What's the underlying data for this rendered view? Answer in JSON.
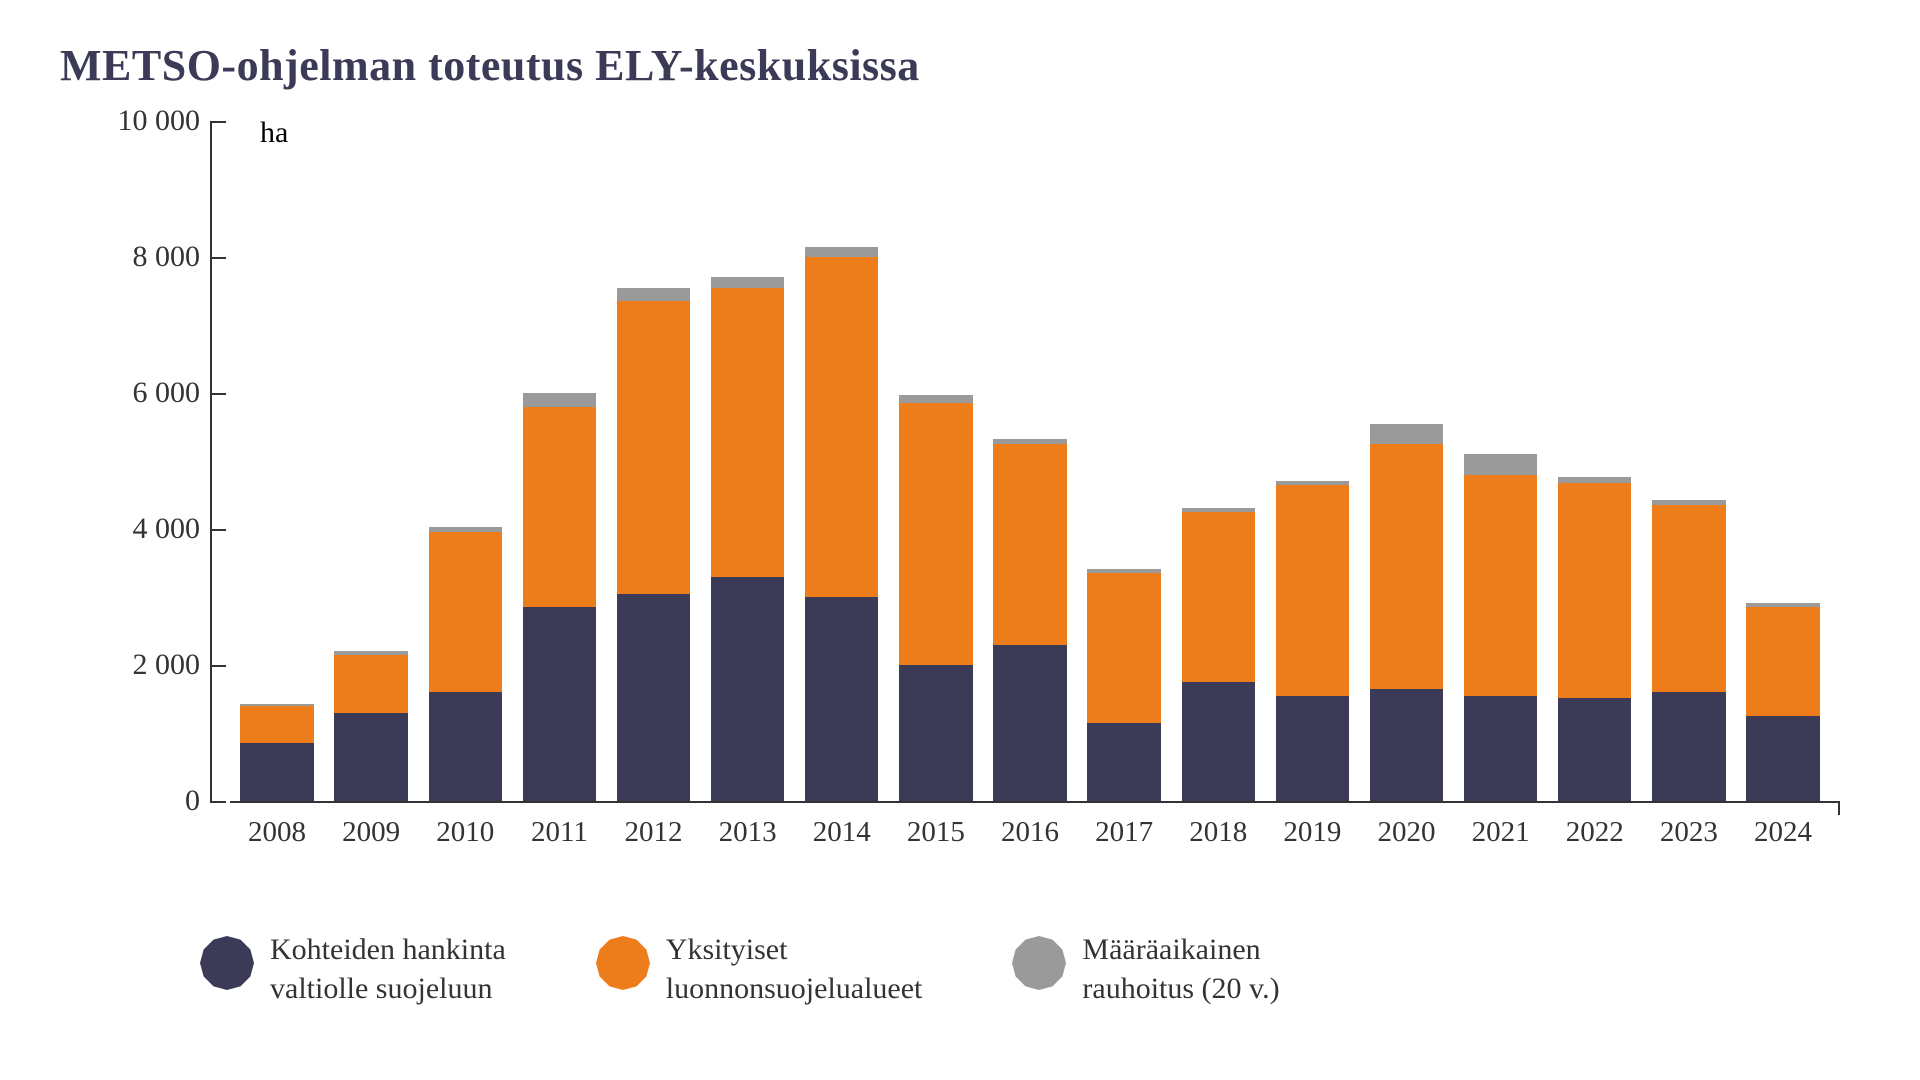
{
  "title": "METSO-ohjelman toteutus ELY-keskuksissa",
  "title_color": "#3c3b57",
  "title_fontsize": 44,
  "chart": {
    "type": "stacked-bar",
    "unit_label": "ha",
    "background_color": "#ffffff",
    "axis_color": "#333333",
    "text_color": "#333333",
    "ylim": [
      0,
      10000
    ],
    "yticks": [
      0,
      2000,
      4000,
      6000,
      8000,
      10000
    ],
    "ytick_labels": [
      "0",
      "2 000",
      "4 000",
      "6 000",
      "8 000",
      "10 000"
    ],
    "label_fontsize": 30,
    "bar_width_ratio": 0.78,
    "categories": [
      "2008",
      "2009",
      "2010",
      "2011",
      "2012",
      "2013",
      "2014",
      "2015",
      "2016",
      "2017",
      "2018",
      "2019",
      "2020",
      "2021",
      "2022",
      "2023",
      "2024"
    ],
    "series": [
      {
        "key": "kohteiden",
        "label_line1": "Kohteiden hankinta",
        "label_line2": "valtiolle suojeluun",
        "color": "#3c3b57",
        "values": [
          850,
          1300,
          1600,
          2850,
          3050,
          3300,
          3000,
          2000,
          2300,
          1150,
          1750,
          1550,
          1650,
          1550,
          1520,
          1600,
          1250
        ]
      },
      {
        "key": "yksityiset",
        "label_line1": "Yksityiset",
        "label_line2": "luonnonsuojelualueet",
        "color": "#ed7c1a",
        "values": [
          550,
          850,
          2350,
          2950,
          4300,
          4250,
          5000,
          3850,
          2950,
          2200,
          2500,
          3100,
          3600,
          3250,
          3150,
          2750,
          1600
        ]
      },
      {
        "key": "maaraaikainen",
        "label_line1": "Määräaikainen",
        "label_line2": "rauhoitus (20 v.)",
        "color": "#9a9a9a",
        "values": [
          30,
          50,
          80,
          200,
          200,
          150,
          150,
          120,
          80,
          60,
          60,
          60,
          300,
          300,
          100,
          80,
          60
        ]
      }
    ],
    "swatch_polygon_sides": 12
  }
}
